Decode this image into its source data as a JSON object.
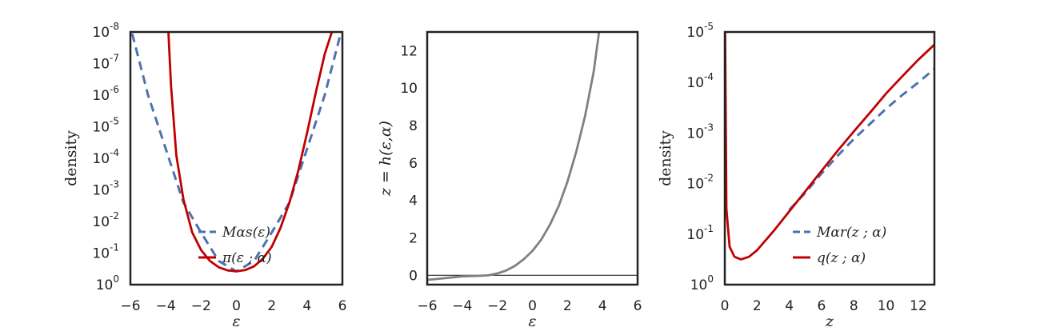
{
  "colors": {
    "blue": "#4c72b0",
    "red": "#c00000",
    "gray": "#808080",
    "frame": "#222222"
  },
  "chart_data": [
    {
      "type": "line",
      "xlabel": "ε",
      "ylabel": "density",
      "xlim": [
        -6,
        6
      ],
      "ylog": true,
      "ylim_exp": [
        -8,
        0
      ],
      "xticks": [
        -6,
        -4,
        -2,
        0,
        2,
        4,
        6
      ],
      "yticks_exp": [
        0,
        -1,
        -2,
        -3,
        -4,
        -5,
        -6,
        -7,
        -8
      ],
      "legend_position": "lower-center",
      "series": [
        {
          "name": "Mαs(ε)",
          "style": "dashed",
          "color": "#4c72b0",
          "x": [
            -5.9,
            -5,
            -4,
            -3,
            -2,
            -1,
            0,
            1,
            2,
            3,
            4,
            5,
            5.9
          ],
          "y_log10": [
            -7.95,
            -6.0,
            -4.3,
            -2.6,
            -1.65,
            -0.75,
            -0.42,
            -0.75,
            -1.65,
            -2.6,
            -4.3,
            -6.0,
            -7.95
          ]
        },
        {
          "name": "π(ε ; α)",
          "style": "solid",
          "color": "#c00000",
          "x": [
            -3.85,
            -3.7,
            -3.4,
            -3,
            -2.5,
            -2,
            -1.5,
            -1,
            -0.5,
            0,
            0.5,
            1,
            1.5,
            2,
            2.5,
            3,
            3.5,
            4,
            4.5,
            5,
            5.4
          ],
          "y_log10": [
            -8.0,
            -6.3,
            -4.1,
            -2.7,
            -1.65,
            -1.1,
            -0.75,
            -0.55,
            -0.45,
            -0.42,
            -0.46,
            -0.58,
            -0.82,
            -1.2,
            -1.8,
            -2.6,
            -3.6,
            -4.8,
            -6.1,
            -7.3,
            -8.0
          ]
        }
      ]
    },
    {
      "type": "line",
      "xlabel": "ε",
      "ylabel": "z = h(ε,α)",
      "xlim": [
        -6,
        6
      ],
      "ylim": [
        -0.5,
        13
      ],
      "xticks": [
        -6,
        -4,
        -2,
        0,
        2,
        4,
        6
      ],
      "yticks": [
        0,
        2,
        4,
        6,
        8,
        10,
        12
      ],
      "hline": 0,
      "series": [
        {
          "style": "solid",
          "color": "#808080",
          "x": [
            -6,
            -4,
            -3,
            -2.5,
            -2,
            -1.5,
            -1,
            -0.5,
            0,
            0.5,
            1,
            1.5,
            2,
            2.5,
            3,
            3.5,
            3.8
          ],
          "y": [
            -0.25,
            -0.06,
            -0.03,
            0.0,
            0.1,
            0.25,
            0.5,
            0.85,
            1.3,
            1.9,
            2.7,
            3.7,
            5.0,
            6.6,
            8.5,
            10.9,
            13.0
          ]
        }
      ]
    },
    {
      "type": "line",
      "xlabel": "z",
      "ylabel": "density",
      "xlim": [
        0,
        13
      ],
      "ylog": true,
      "ylim_exp": [
        -5,
        0
      ],
      "xticks": [
        0,
        2,
        4,
        6,
        8,
        10,
        12
      ],
      "yticks_exp": [
        0,
        -1,
        -2,
        -3,
        -4,
        -5
      ],
      "legend_position": "lower-center",
      "series": [
        {
          "name": "Mαr(z ; α)",
          "style": "dashed",
          "color": "#4c72b0",
          "x": [
            4,
            5,
            6,
            7,
            8,
            9,
            10,
            11,
            12,
            13
          ],
          "y_log10": [
            -1.48,
            -1.82,
            -2.2,
            -2.55,
            -2.88,
            -3.18,
            -3.48,
            -3.75,
            -4.0,
            -4.27
          ]
        },
        {
          "name": "q(z ; α)",
          "style": "solid",
          "color": "#c00000",
          "x": [
            0.02,
            0.1,
            0.3,
            0.6,
            1.0,
            1.5,
            2,
            3,
            4,
            5,
            6,
            7,
            8,
            9,
            10,
            11,
            12,
            13
          ],
          "y_log10": [
            -5.0,
            -1.5,
            -0.75,
            -0.55,
            -0.5,
            -0.55,
            -0.68,
            -1.05,
            -1.45,
            -1.85,
            -2.25,
            -2.65,
            -3.03,
            -3.4,
            -3.78,
            -4.12,
            -4.45,
            -4.75
          ]
        }
      ]
    }
  ]
}
